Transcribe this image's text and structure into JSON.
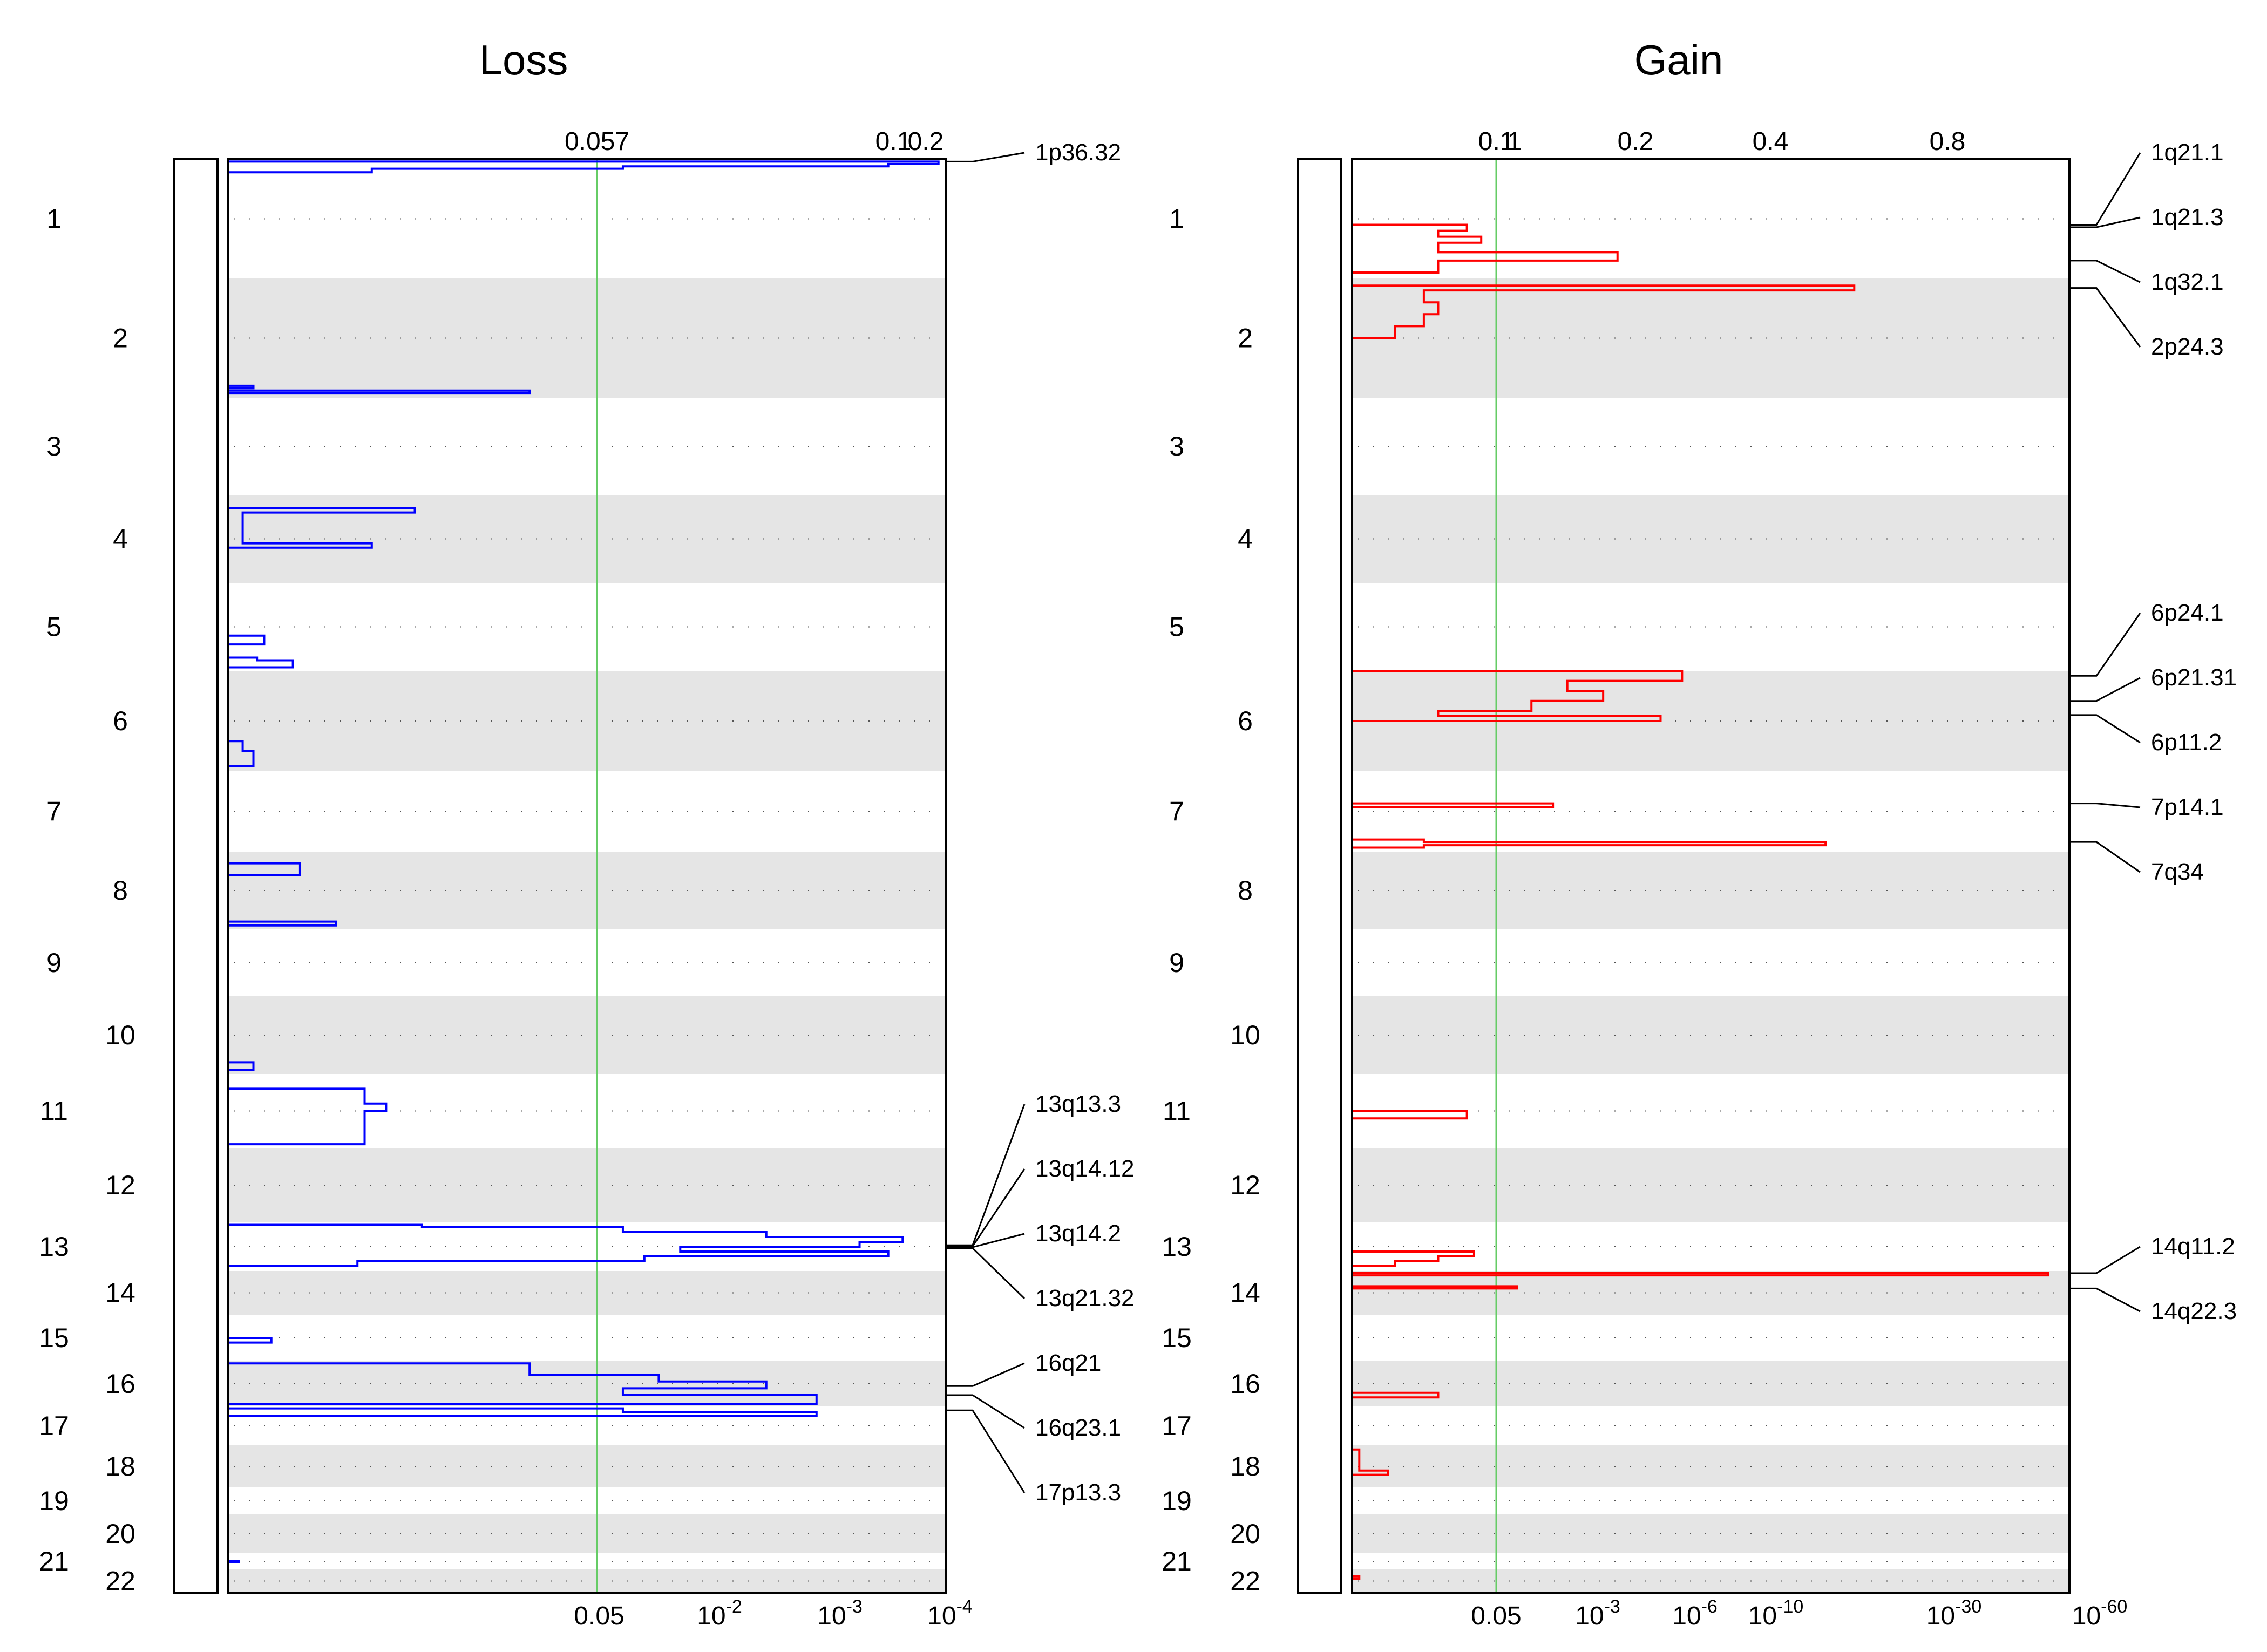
{
  "chart_data": [
    {
      "type": "line",
      "panel": "loss",
      "title": "Loss",
      "color": "#0000ff",
      "band_color": "#e5e5e5",
      "threshold_color": "#66cc66",
      "chromosomes": [
        "1",
        "2",
        "3",
        "4",
        "5",
        "6",
        "7",
        "8",
        "9",
        "10",
        "11",
        "12",
        "13",
        "14",
        "15",
        "16",
        "17",
        "18",
        "19",
        "20",
        "21",
        "22"
      ],
      "shaded_chromosomes": [
        "2",
        "4",
        "6",
        "8",
        "10",
        "12",
        "14",
        "16",
        "18",
        "20",
        "22"
      ],
      "top_ticks": [
        "0.057",
        "0.1",
        "0.2"
      ],
      "bottom_ticks": [
        {
          "base": "0.05",
          "exp": ""
        },
        {
          "base": "10",
          "exp": "-2"
        },
        {
          "base": "10",
          "exp": "-3"
        },
        {
          "base": "10",
          "exp": "-4"
        }
      ],
      "threshold": 0.05,
      "regions": [
        {
          "label": "1p36.32",
          "chromosome": "1",
          "position": 0.02
        },
        {
          "label": "13q13.3",
          "chromosome": "13",
          "position": 0.47
        },
        {
          "label": "13q14.12",
          "chromosome": "13",
          "position": 0.49
        },
        {
          "label": "13q14.2",
          "chromosome": "13",
          "position": 0.51
        },
        {
          "label": "13q21.32",
          "chromosome": "13",
          "position": 0.53
        },
        {
          "label": "16q21",
          "chromosome": "16",
          "position": 0.55
        },
        {
          "label": "16q23.1",
          "chromosome": "16",
          "position": 0.75
        },
        {
          "label": "17p13.3",
          "chromosome": "17",
          "position": 0.1
        }
      ],
      "series": [
        {
          "chromosome": "1",
          "points": [
            [
              0.02,
              0.99
            ],
            [
              0.04,
              0.92
            ],
            [
              0.06,
              0.55
            ],
            [
              0.08,
              0.2
            ],
            [
              0.11,
              0.0
            ]
          ]
        },
        {
          "chromosome": "2",
          "points": [
            [
              0.9,
              0.035
            ],
            [
              0.92,
              0.0
            ],
            [
              0.94,
              0.42
            ],
            [
              0.96,
              0.0
            ]
          ]
        },
        {
          "chromosome": "4",
          "points": [
            [
              0.1,
              0.0
            ],
            [
              0.15,
              0.26
            ],
            [
              0.2,
              0.02
            ],
            [
              0.55,
              0.2
            ],
            [
              0.6,
              0.0
            ]
          ]
        },
        {
          "chromosome": "5",
          "points": [
            [
              0.6,
              0.05
            ],
            [
              0.7,
              0.0
            ],
            [
              0.85,
              0.04
            ],
            [
              0.88,
              0.09
            ],
            [
              0.93,
              0.09
            ],
            [
              0.96,
              0.0
            ]
          ]
        },
        {
          "chromosome": "6",
          "points": [
            [
              0.7,
              0.02
            ],
            [
              0.8,
              0.035
            ],
            [
              0.9,
              0.035
            ],
            [
              0.95,
              0.0
            ]
          ]
        },
        {
          "chromosome": "8",
          "points": [
            [
              0.15,
              0.1
            ],
            [
              0.3,
              0.0
            ],
            [
              0.9,
              0.15
            ],
            [
              0.95,
              0.0
            ]
          ]
        },
        {
          "chromosome": "10",
          "points": [
            [
              0.85,
              0.035
            ],
            [
              0.95,
              0.0
            ]
          ]
        },
        {
          "chromosome": "11",
          "points": [
            [
              0.2,
              0.19
            ],
            [
              0.4,
              0.22
            ],
            [
              0.5,
              0.19
            ],
            [
              0.95,
              0.0
            ]
          ]
        },
        {
          "chromosome": "13",
          "points": [
            [
              0.05,
              0.27
            ],
            [
              0.1,
              0.55
            ],
            [
              0.2,
              0.75
            ],
            [
              0.3,
              0.94
            ],
            [
              0.4,
              0.88
            ],
            [
              0.5,
              0.63
            ],
            [
              0.6,
              0.92
            ],
            [
              0.7,
              0.58
            ],
            [
              0.8,
              0.18
            ],
            [
              0.9,
              0.0
            ]
          ]
        },
        {
          "chromosome": "15",
          "points": [
            [
              0.5,
              0.06
            ],
            [
              0.6,
              0.0
            ]
          ]
        },
        {
          "chromosome": "16",
          "points": [
            [
              0.05,
              0.42
            ],
            [
              0.3,
              0.6
            ],
            [
              0.45,
              0.75
            ],
            [
              0.6,
              0.55
            ],
            [
              0.75,
              0.82
            ],
            [
              0.95,
              0.0
            ]
          ]
        },
        {
          "chromosome": "17",
          "points": [
            [
              0.05,
              0.55
            ],
            [
              0.15,
              0.82
            ],
            [
              0.25,
              0.0
            ]
          ]
        },
        {
          "chromosome": "21",
          "points": [
            [
              0.5,
              0.015
            ],
            [
              0.55,
              0.0
            ]
          ]
        }
      ]
    },
    {
      "type": "line",
      "panel": "gain",
      "title": "Gain",
      "color": "#ff0000",
      "band_color": "#e5e5e5",
      "threshold_color": "#66cc66",
      "chromosomes": [
        "1",
        "2",
        "3",
        "4",
        "5",
        "6",
        "7",
        "8",
        "9",
        "10",
        "11",
        "12",
        "13",
        "14",
        "15",
        "16",
        "17",
        "18",
        "19",
        "20",
        "21",
        "22"
      ],
      "shaded_chromosomes": [
        "2",
        "4",
        "6",
        "8",
        "10",
        "12",
        "14",
        "16",
        "18",
        "20",
        "22"
      ],
      "top_ticks": [
        "0.1",
        "0.1",
        "1",
        "0.2",
        "0.4",
        "0.8"
      ],
      "bottom_ticks": [
        {
          "base": "0.05",
          "exp": ""
        },
        {
          "base": "10",
          "exp": "-3"
        },
        {
          "base": "10",
          "exp": "-6"
        },
        {
          "base": "10",
          "exp": "-10"
        },
        {
          "base": "10",
          "exp": "-30"
        },
        {
          "base": "10",
          "exp": "-60"
        }
      ],
      "threshold": 0.05,
      "regions": [
        {
          "label": "1q21.1",
          "chromosome": "1",
          "position": 0.55
        },
        {
          "label": "1q21.3",
          "chromosome": "1",
          "position": 0.57
        },
        {
          "label": "1q32.1",
          "chromosome": "1",
          "position": 0.85
        },
        {
          "label": "2p24.3",
          "chromosome": "2",
          "position": 0.08
        },
        {
          "label": "6p24.1",
          "chromosome": "6",
          "position": 0.05
        },
        {
          "label": "6p21.31",
          "chromosome": "6",
          "position": 0.3
        },
        {
          "label": "6p11.2",
          "chromosome": "6",
          "position": 0.44
        },
        {
          "label": "7p14.1",
          "chromosome": "7",
          "position": 0.4
        },
        {
          "label": "7q34",
          "chromosome": "7",
          "position": 0.88
        },
        {
          "label": "14q11.2",
          "chromosome": "14",
          "position": 0.05
        },
        {
          "label": "14q22.3",
          "chromosome": "14",
          "position": 0.4
        }
      ],
      "series": [
        {
          "chromosome": "1",
          "points": [
            [
              0.55,
              0.16
            ],
            [
              0.6,
              0.12
            ],
            [
              0.65,
              0.18
            ],
            [
              0.7,
              0.12
            ],
            [
              0.78,
              0.37
            ],
            [
              0.85,
              0.12
            ],
            [
              0.95,
              0.02
            ]
          ]
        },
        {
          "chromosome": "2",
          "points": [
            [
              0.06,
              0.7
            ],
            [
              0.1,
              0.1
            ],
            [
              0.2,
              0.12
            ],
            [
              0.3,
              0.1
            ],
            [
              0.4,
              0.06
            ],
            [
              0.5,
              0.02
            ]
          ]
        },
        {
          "chromosome": "6",
          "points": [
            [
              0.0,
              0.46
            ],
            [
              0.05,
              0.46
            ],
            [
              0.1,
              0.3
            ],
            [
              0.2,
              0.35
            ],
            [
              0.3,
              0.25
            ],
            [
              0.4,
              0.12
            ],
            [
              0.45,
              0.43
            ],
            [
              0.5,
              0.0
            ]
          ]
        },
        {
          "chromosome": "7",
          "points": [
            [
              0.4,
              0.28
            ],
            [
              0.45,
              0.0
            ],
            [
              0.85,
              0.1
            ],
            [
              0.88,
              0.66
            ],
            [
              0.92,
              0.1
            ],
            [
              0.95,
              0.0
            ]
          ]
        },
        {
          "chromosome": "11",
          "points": [
            [
              0.5,
              0.16
            ],
            [
              0.6,
              0.0
            ]
          ]
        },
        {
          "chromosome": "13",
          "points": [
            [
              0.6,
              0.17
            ],
            [
              0.7,
              0.12
            ],
            [
              0.8,
              0.06
            ],
            [
              0.9,
              0.0
            ]
          ]
        },
        {
          "chromosome": "14",
          "points": [
            [
              0.05,
              0.97
            ],
            [
              0.1,
              0.0
            ],
            [
              0.35,
              0.23
            ],
            [
              0.4,
              0.0
            ]
          ]
        },
        {
          "chromosome": "16",
          "points": [
            [
              0.7,
              0.12
            ],
            [
              0.8,
              0.0
            ]
          ]
        },
        {
          "chromosome": "18",
          "points": [
            [
              0.1,
              0.01
            ],
            [
              0.6,
              0.05
            ],
            [
              0.7,
              0.0
            ]
          ]
        },
        {
          "chromosome": "22",
          "points": [
            [
              0.3,
              0.01
            ],
            [
              0.4,
              0.0
            ]
          ]
        }
      ]
    }
  ]
}
